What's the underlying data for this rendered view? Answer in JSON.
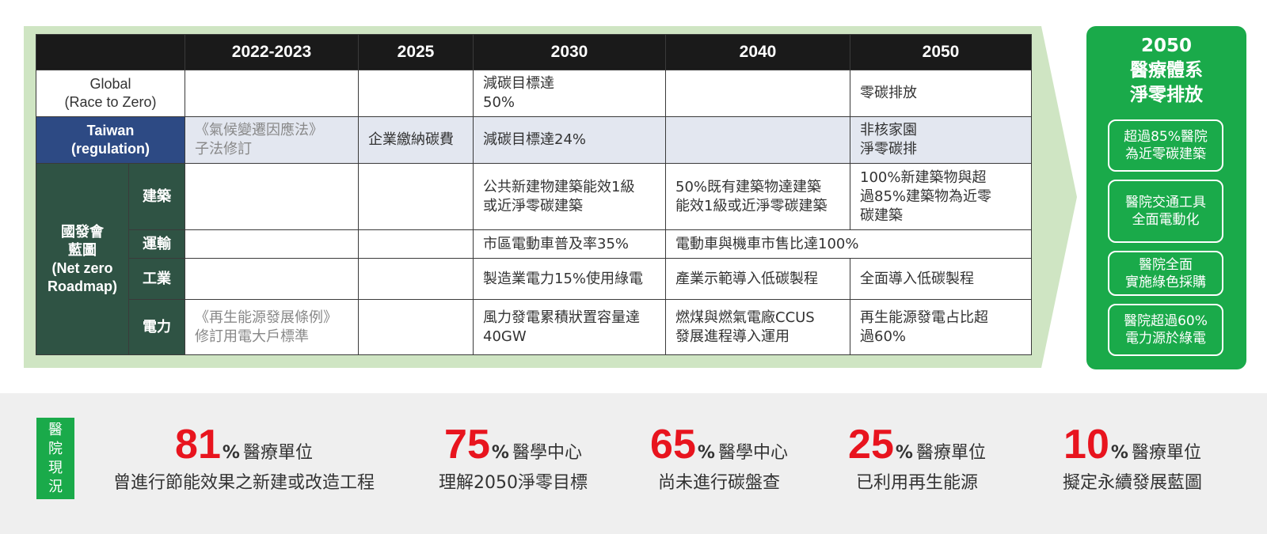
{
  "table": {
    "headers": [
      "",
      "2022-2023",
      "2025",
      "2030",
      "2040",
      "2050"
    ],
    "global": {
      "label": "Global\n(Race to Zero)",
      "cells": [
        "",
        "",
        "減碳目標達\n50%",
        "",
        "零碳排放"
      ]
    },
    "taiwan": {
      "label": "Taiwan\n(regulation)",
      "cells": [
        "《氣候變遷因應法》\n子法修訂",
        "企業繳納碳費",
        "減碳目標達24%",
        "",
        "非核家園\n淨零碳排"
      ]
    },
    "ndc": {
      "label": "國發會\n藍圖\n(Net zero\nRoadmap)",
      "rows": [
        {
          "sector": "建築",
          "cells": [
            "",
            "",
            "公共新建物建築能效1級\n或近淨零碳建築",
            "50%既有建築物達建築\n能效1級或近淨零碳建築",
            "100%新建築物與超\n過85%建築物為近零\n碳建築"
          ]
        },
        {
          "sector": "運輸",
          "cells": [
            "",
            "",
            "市區電動車普及率35%",
            "電動車與機車市售比達100%"
          ]
        },
        {
          "sector": "工業",
          "cells": [
            "",
            "",
            "製造業電力15%使用綠電",
            "產業示範導入低碳製程",
            "全面導入低碳製程"
          ]
        },
        {
          "sector": "電力",
          "cells": [
            "《再生能源發展條例》\n修訂用電大戶標準",
            "",
            "風力發電累積狀置容量達\n40GW",
            "燃煤與燃氣電廠CCUS\n發展進程導入運用",
            "再生能源發電占比超\n過60%"
          ]
        }
      ]
    }
  },
  "goal": {
    "title": "2050\n醫療體系\n淨零排放",
    "items": [
      "超過85%醫院\n為近零碳建築",
      "醫院交通工具\n全面電動化",
      "醫院全面\n實施綠色採購",
      "醫院超過60%\n電力源於綠電"
    ]
  },
  "status": {
    "tag": "醫院現況",
    "stats": [
      {
        "value": "81",
        "unit": "%",
        "label1": "醫療單位",
        "label2": "曾進行節能效果之新建或改造工程"
      },
      {
        "value": "75",
        "unit": "%",
        "label1": "醫學中心",
        "label2": "理解2050淨零目標"
      },
      {
        "value": "65",
        "unit": "%",
        "label1": "醫學中心",
        "label2": "尚未進行碳盤查"
      },
      {
        "value": "25",
        "unit": "%",
        "label1": "醫療單位",
        "label2": "已利用再生能源"
      },
      {
        "value": "10",
        "unit": "%",
        "label1": "醫療單位",
        "label2": "擬定永續發展藍圖"
      }
    ]
  },
  "colors": {
    "arrow": "#cfe5c3",
    "header": "#1a1a1a",
    "taiwan": "#2d4a84",
    "ndc": "#2f5344",
    "accent_green": "#1aaa4a",
    "accent_red": "#e8141e"
  }
}
